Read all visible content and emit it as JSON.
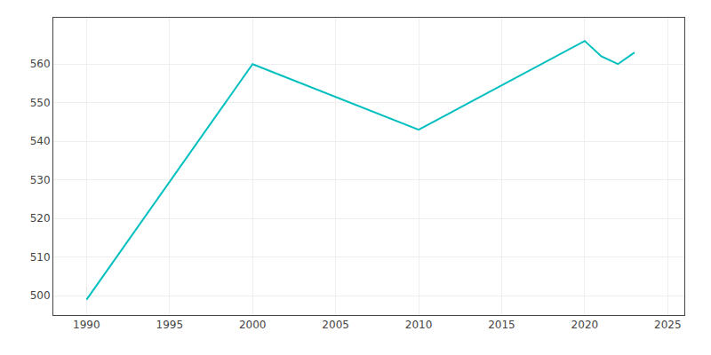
{
  "chart_data": {
    "type": "line",
    "x": [
      1990,
      2000,
      2010,
      2020,
      2021,
      2022,
      2023
    ],
    "values": [
      499,
      560,
      543,
      566,
      562,
      560,
      563
    ],
    "color": "#00BFBF",
    "xlim": [
      1988,
      2026
    ],
    "ylim": [
      495,
      572
    ],
    "xticks": [
      1990,
      1995,
      2000,
      2005,
      2010,
      2015,
      2020,
      2025
    ],
    "yticks": [
      500,
      510,
      520,
      530,
      540,
      550,
      560
    ],
    "grid": true
  }
}
